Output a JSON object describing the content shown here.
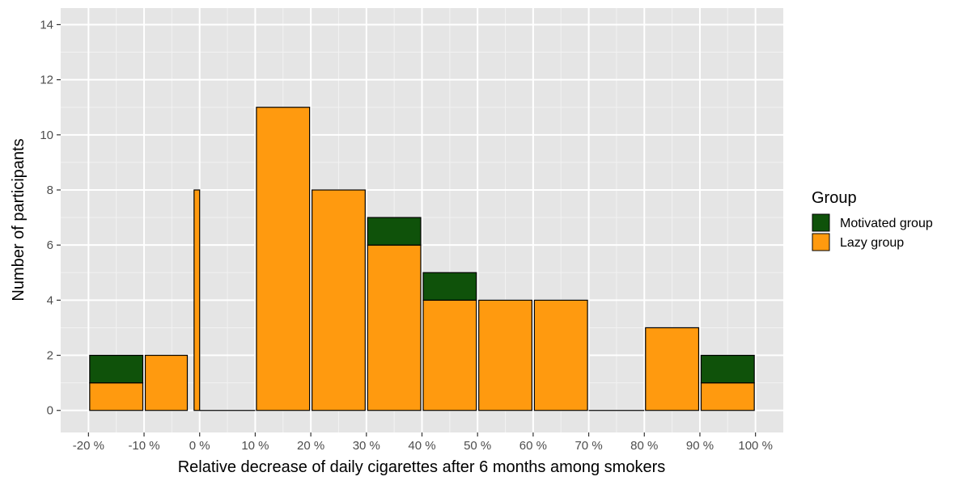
{
  "chart_data": {
    "type": "bar",
    "stacked": true,
    "x_bins": [
      {
        "label": "-20 % to -10 %",
        "from": -20,
        "to": -10
      },
      {
        "label": "-10 % to 0 %",
        "from": -10,
        "to": -2
      },
      {
        "label": "0 %",
        "from": -1,
        "to": 0
      },
      {
        "label": "0 % to 10 %",
        "from": 0,
        "to": 10
      },
      {
        "label": "10 % to 20 %",
        "from": 10,
        "to": 20
      },
      {
        "label": "20 % to 30 %",
        "from": 20,
        "to": 30
      },
      {
        "label": "30 % to 40 %",
        "from": 30,
        "to": 40
      },
      {
        "label": "40 % to 50 %",
        "from": 40,
        "to": 50
      },
      {
        "label": "50 % to 60 %",
        "from": 50,
        "to": 60
      },
      {
        "label": "60 % to 70 %",
        "from": 60,
        "to": 70
      },
      {
        "label": "70 % to 80 %",
        "from": 70,
        "to": 80
      },
      {
        "label": "80 % to 90 %",
        "from": 80,
        "to": 90
      },
      {
        "label": "90 % to 100 %",
        "from": 90,
        "to": 100
      }
    ],
    "series": [
      {
        "name": "Lazy group",
        "color": "#FF9A0F",
        "values": [
          1,
          2,
          8,
          0,
          11,
          8,
          6,
          4,
          4,
          4,
          0,
          3,
          1
        ]
      },
      {
        "name": "Motivated group",
        "color": "#0F520A",
        "values": [
          1,
          0,
          0,
          0,
          0,
          0,
          1,
          1,
          0,
          0,
          0,
          0,
          1
        ]
      }
    ],
    "xlabel": "Relative decrease of daily cigarettes after 6 months among smokers",
    "ylabel": "Number of participants",
    "xlim": [
      -25,
      105
    ],
    "ylim": [
      -0.8,
      14.6
    ],
    "x_ticks": [
      -20,
      -10,
      0,
      10,
      20,
      30,
      40,
      50,
      60,
      70,
      80,
      90,
      100
    ],
    "x_tick_labels": [
      "-20 %",
      "-10 %",
      "0 %",
      "10 %",
      "20 %",
      "30 %",
      "40 %",
      "50 %",
      "60 %",
      "70 %",
      "80 %",
      "90 %",
      "100 %"
    ],
    "y_ticks": [
      0,
      2,
      4,
      6,
      8,
      10,
      12,
      14
    ],
    "y_tick_labels": [
      "0",
      "2",
      "4",
      "6",
      "8",
      "10",
      "12",
      "14"
    ],
    "grid": true,
    "panel_background": "#E5E5E5",
    "legend": {
      "title": "Group",
      "position": "right",
      "entries": [
        {
          "label": "Motivated group",
          "color": "#0F520A"
        },
        {
          "label": "Lazy group",
          "color": "#FF9A0F"
        }
      ]
    }
  }
}
